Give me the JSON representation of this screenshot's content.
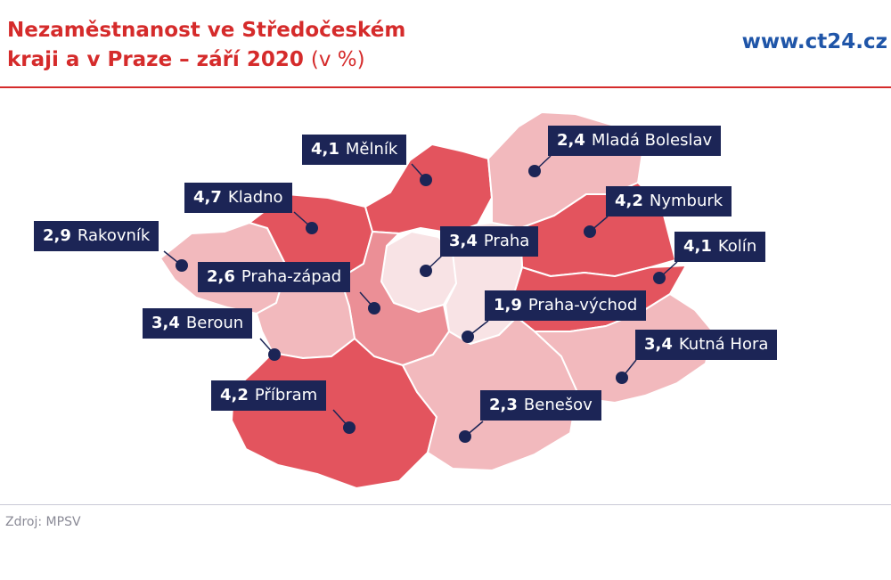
{
  "header": {
    "title_line1": "Nezaměstnanost ve Středočeském",
    "title_line2": "kraji a v Praze – září 2020",
    "title_unit": "(v %)",
    "site": "www.ct24.cz"
  },
  "footer": {
    "source": "Zdroj: MPSV"
  },
  "colors": {
    "title": "#d52b2b",
    "site": "#1f55a8",
    "label_bg": "#1c2556",
    "marker": "#1c2556",
    "region_dark": "#e3545e",
    "region_mid": "#eb8f96",
    "region_light": "#f2b9bd",
    "region_pale": "#f8e3e5"
  },
  "districts": [
    {
      "name": "Mělník",
      "value": "4,1"
    },
    {
      "name": "Mladá Boleslav",
      "value": "2,4"
    },
    {
      "name": "Kladno",
      "value": "4,7"
    },
    {
      "name": "Nymburk",
      "value": "4,2"
    },
    {
      "name": "Rakovník",
      "value": "2,9"
    },
    {
      "name": "Praha",
      "value": "3,4"
    },
    {
      "name": "Kolín",
      "value": "4,1"
    },
    {
      "name": "Praha-západ",
      "value": "2,6"
    },
    {
      "name": "Praha-východ",
      "value": "1,9"
    },
    {
      "name": "Beroun",
      "value": "3,4"
    },
    {
      "name": "Kutná Hora",
      "value": "3,4"
    },
    {
      "name": "Příbram",
      "value": "4,2"
    },
    {
      "name": "Benešov",
      "value": "2,3"
    }
  ]
}
